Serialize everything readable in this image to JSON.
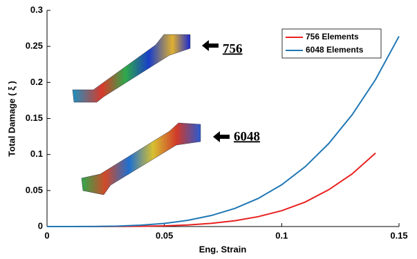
{
  "chart_data": {
    "type": "line",
    "xlabel": "Eng. Strain",
    "ylabel": "Total Damage ( ξ )",
    "x": [
      0,
      0.01,
      0.02,
      0.03,
      0.04,
      0.05,
      0.06,
      0.07,
      0.08,
      0.09,
      0.1,
      0.11,
      0.12,
      0.13,
      0.14,
      0.15
    ],
    "series": [
      {
        "name": "756 Elements",
        "color": "#e8201e",
        "values": [
          0,
          0,
          1e-05,
          0.0001,
          0.0003,
          0.0009,
          0.0022,
          0.0044,
          0.008,
          0.0137,
          0.022,
          0.034,
          0.051,
          0.073,
          0.102,
          null
        ]
      },
      {
        "name": "6048 Elements",
        "color": "#1f77b4",
        "values": [
          0,
          0,
          0.00014,
          0.00064,
          0.0019,
          0.0043,
          0.0086,
          0.0153,
          0.0251,
          0.039,
          0.058,
          0.083,
          0.115,
          0.155,
          0.204,
          0.264
        ]
      }
    ],
    "xlim": [
      0,
      0.15
    ],
    "ylim": [
      0,
      0.3
    ],
    "xticks": [
      0,
      0.05,
      0.1,
      0.15
    ],
    "yticks": [
      0,
      0.05,
      0.1,
      0.15,
      0.2,
      0.25,
      0.3
    ],
    "legend": "upper right",
    "annotations": [
      "756",
      "6048"
    ]
  }
}
